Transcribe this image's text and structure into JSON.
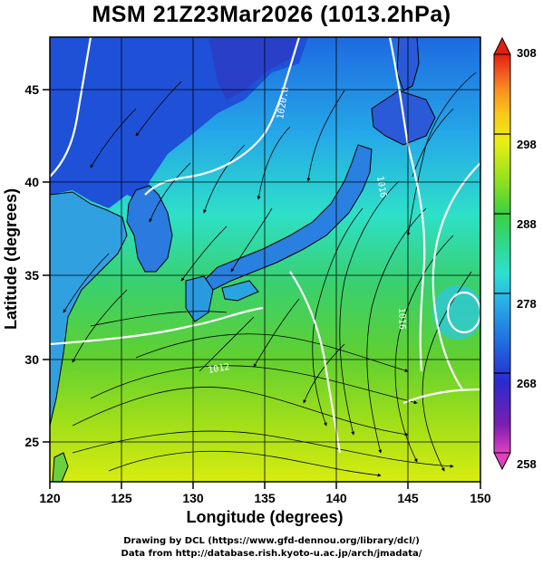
{
  "title": "MSM 21Z23Mar2026 (1013.2hPa)",
  "x_axis": {
    "label": "Longitude (degrees)",
    "range": [
      120,
      150
    ],
    "ticks": [
      "120",
      "125",
      "130",
      "135",
      "140",
      "145",
      "150"
    ]
  },
  "y_axis": {
    "label": "Latitude  (degrees)",
    "range": [
      22.5,
      47.6
    ],
    "ticks": [
      "25",
      "30",
      "35",
      "40",
      "45"
    ]
  },
  "colorbar": {
    "range": [
      258,
      308
    ],
    "ticks": [
      "258",
      "268",
      "278",
      "288",
      "298",
      "308"
    ],
    "colors": [
      "#e040c0",
      "#7a1fb0",
      "#2a2ad0",
      "#1f6fe0",
      "#28b0e8",
      "#2ee0d0",
      "#30d890",
      "#3ad040",
      "#8ee020",
      "#e8f010",
      "#f8c818",
      "#f89020",
      "#f05020",
      "#e02010"
    ]
  },
  "contour_labels": [
    "1020.0",
    "1016",
    "1016",
    "1012"
  ],
  "credits": {
    "line1": "Drawing by DCL (https://www.gfd-dennou.org/library/dcl/)",
    "line2": "Data from http://database.rish.kyoto-u.ac.jp/arch/jmadata/"
  }
}
